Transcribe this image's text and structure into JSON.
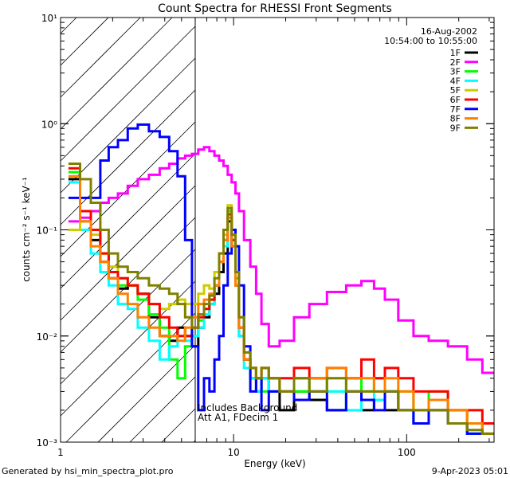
{
  "chart_data": {
    "type": "line",
    "title": "Count Spectra for RHESSI Front Segments",
    "xlabel": "Energy (keV)",
    "ylabel": "counts cm⁻² s⁻¹ keV⁻¹",
    "xscale": "log",
    "yscale": "log",
    "xlim": [
      1,
      320
    ],
    "ylim": [
      0.001,
      10
    ],
    "x_ticks": [
      "1",
      "10",
      "100"
    ],
    "x_tick_values": [
      1,
      10,
      100
    ],
    "y_ticks": [
      "10⁻³",
      "10⁻²",
      "10⁻¹",
      "10⁰",
      "10¹"
    ],
    "y_tick_values": [
      0.001,
      0.01,
      0.1,
      1,
      10
    ],
    "date": "16-Aug-2002",
    "time_range": "10:54:00 to 10:55:00",
    "annotation_1": "Includes Background",
    "annotation_2": "Att A1, FDecim 1",
    "excluded_region_keV": [
      1,
      6
    ],
    "legend_placement": "top-right",
    "energy": [
      1.2,
      1.4,
      1.6,
      1.8,
      2.0,
      2.3,
      2.6,
      3.0,
      3.5,
      4.0,
      4.5,
      5.0,
      5.5,
      6.0,
      6.5,
      7.0,
      7.5,
      8.0,
      8.5,
      9.0,
      9.5,
      10.0,
      10.5,
      11,
      12,
      13,
      14,
      15,
      17,
      20,
      25,
      30,
      40,
      50,
      60,
      70,
      80,
      100,
      120,
      150,
      200,
      250,
      300
    ],
    "series": [
      {
        "name": "1F",
        "color": "#000000",
        "values": [
          0.3,
          0.12,
          0.08,
          0.05,
          0.035,
          0.028,
          0.03,
          0.025,
          0.015,
          0.01,
          0.009,
          0.012,
          0.01,
          0.008,
          0.012,
          0.015,
          0.02,
          0.025,
          0.04,
          0.06,
          0.12,
          0.07,
          0.03,
          0.01,
          0.006,
          0.004,
          0.003,
          0.004,
          0.003,
          0.002,
          0.003,
          0.0025,
          0.002,
          0.003,
          0.002,
          0.0025,
          0.002,
          0.002,
          0.0015,
          0.002,
          0.0015,
          0.0012,
          null
        ]
      },
      {
        "name": "2F",
        "color": "#ff00ff",
        "values": [
          0.12,
          0.13,
          0.15,
          0.18,
          0.2,
          0.22,
          0.26,
          0.3,
          0.33,
          0.38,
          0.42,
          0.47,
          0.5,
          0.52,
          0.57,
          0.6,
          0.55,
          0.5,
          0.45,
          0.4,
          0.33,
          0.28,
          0.22,
          0.15,
          0.08,
          0.045,
          0.025,
          0.013,
          0.008,
          0.009,
          0.015,
          0.02,
          0.026,
          0.03,
          0.033,
          0.028,
          0.022,
          0.014,
          0.01,
          0.009,
          0.008,
          0.006,
          0.0045
        ]
      },
      {
        "name": "3F",
        "color": "#00ff00",
        "values": [
          0.35,
          0.15,
          0.1,
          0.06,
          0.04,
          0.03,
          0.03,
          0.022,
          0.016,
          0.012,
          0.006,
          0.004,
          0.008,
          0.01,
          0.014,
          0.018,
          0.022,
          0.03,
          0.05,
          0.08,
          0.15,
          0.08,
          0.035,
          0.012,
          0.006,
          0.005,
          0.004,
          0.003,
          0.004,
          0.003,
          0.003,
          0.004,
          0.003,
          0.004,
          0.003,
          0.004,
          0.003,
          0.003,
          0.002,
          0.003,
          0.002,
          0.0015,
          0.0012
        ]
      },
      {
        "name": "4F",
        "color": "#00ffff",
        "values": [
          0.28,
          0.1,
          0.06,
          0.04,
          0.03,
          0.02,
          0.018,
          0.012,
          0.009,
          0.006,
          0.008,
          0.01,
          0.009,
          0.01,
          0.012,
          0.016,
          0.02,
          0.03,
          0.05,
          0.07,
          0.13,
          0.07,
          0.03,
          0.01,
          0.005,
          0.004,
          0.003,
          0.004,
          0.003,
          0.003,
          0.004,
          0.003,
          0.003,
          0.002,
          0.003,
          0.0025,
          0.003,
          0.002,
          0.0015,
          0.002,
          0.0015,
          0.0012,
          null
        ]
      },
      {
        "name": "5F",
        "color": "#cccc00",
        "values": [
          0.1,
          0.12,
          0.09,
          0.06,
          0.045,
          0.035,
          0.03,
          0.025,
          0.02,
          0.018,
          0.02,
          0.022,
          0.02,
          0.02,
          0.025,
          0.03,
          0.028,
          0.04,
          0.06,
          0.09,
          0.17,
          0.08,
          0.04,
          0.015,
          0.007,
          0.005,
          0.004,
          0.005,
          0.004,
          0.003,
          0.004,
          0.003,
          0.004,
          0.003,
          0.003,
          0.004,
          0.003,
          0.003,
          0.002,
          0.002,
          0.002,
          0.0015,
          0.0012
        ]
      },
      {
        "name": "6F",
        "color": "#ff0000",
        "values": [
          0.38,
          0.15,
          0.1,
          0.06,
          0.04,
          0.035,
          0.03,
          0.025,
          0.02,
          0.015,
          0.012,
          0.01,
          0.01,
          0.012,
          0.015,
          0.018,
          0.022,
          0.03,
          0.05,
          0.08,
          0.14,
          0.08,
          0.03,
          0.012,
          0.006,
          0.005,
          0.004,
          0.005,
          0.004,
          0.004,
          0.005,
          0.004,
          0.005,
          0.004,
          0.006,
          0.004,
          0.005,
          0.004,
          0.003,
          0.003,
          0.002,
          0.002,
          0.0015
        ]
      },
      {
        "name": "7F",
        "color": "#0000ff",
        "values": [
          0.2,
          0.2,
          0.2,
          0.45,
          0.6,
          0.7,
          0.9,
          0.98,
          0.85,
          0.75,
          0.55,
          0.32,
          0.08,
          0.008,
          0.002,
          0.004,
          0.003,
          0.006,
          0.01,
          0.03,
          0.06,
          0.1,
          0.07,
          0.03,
          0.008,
          0.003,
          0.004,
          0.002,
          0.003,
          0.003,
          0.0025,
          0.003,
          0.002,
          0.003,
          0.0025,
          0.002,
          0.003,
          0.002,
          0.0015,
          0.002,
          0.0015,
          0.0012,
          null
        ]
      },
      {
        "name": "8F",
        "color": "#ff8000",
        "values": [
          0.32,
          0.12,
          0.07,
          0.05,
          0.035,
          0.025,
          0.02,
          0.015,
          0.012,
          0.01,
          0.01,
          0.009,
          0.012,
          0.015,
          0.02,
          0.022,
          0.025,
          0.03,
          0.05,
          0.08,
          0.13,
          0.07,
          0.03,
          0.012,
          0.006,
          0.005,
          0.004,
          0.005,
          0.004,
          0.003,
          0.004,
          0.004,
          0.005,
          0.004,
          0.004,
          0.003,
          0.004,
          0.003,
          0.002,
          0.0025,
          0.002,
          0.0015,
          0.0012
        ]
      },
      {
        "name": "9F",
        "color": "#808000",
        "values": [
          0.42,
          0.3,
          0.18,
          0.1,
          0.06,
          0.045,
          0.04,
          0.035,
          0.03,
          0.028,
          0.025,
          0.02,
          0.015,
          0.012,
          0.016,
          0.02,
          0.024,
          0.035,
          0.06,
          0.1,
          0.16,
          0.09,
          0.04,
          0.015,
          0.007,
          0.005,
          0.004,
          0.005,
          0.004,
          0.003,
          0.004,
          0.003,
          0.004,
          0.003,
          0.003,
          0.003,
          0.003,
          0.002,
          0.002,
          0.002,
          0.0015,
          0.0013,
          0.0012
        ]
      }
    ]
  },
  "footer": {
    "generated_by": "Generated by hsi_min_spectra_plot.pro",
    "timestamp": "9-Apr-2023 05:01"
  }
}
